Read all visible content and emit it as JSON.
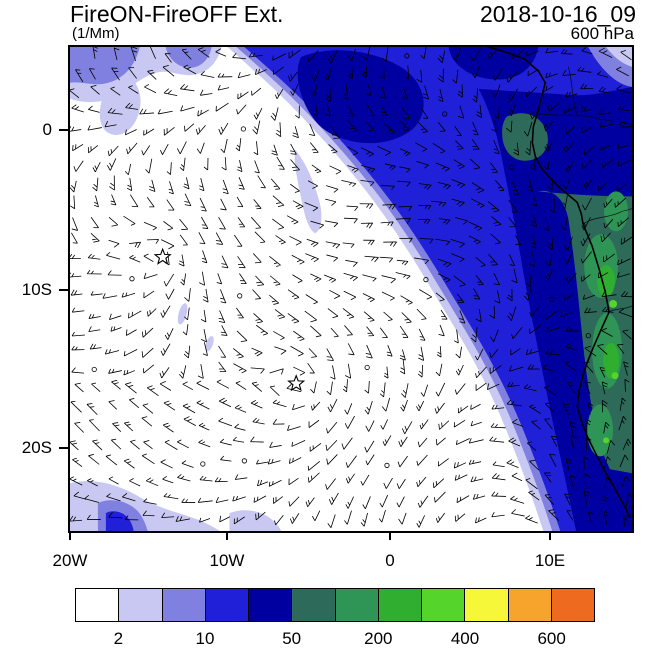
{
  "header": {
    "title": "FireON-FireOFF Ext.",
    "units": "(1/Mm)",
    "datetime": "2018-10-16_09",
    "level": "600 hPa"
  },
  "chart_data": {
    "type": "heatmap",
    "title": "FireON-FireOFF Ext.",
    "units": "1/Mm",
    "pressure_level": "600 hPa",
    "valid_time": "2018-10-16_09",
    "x_axis": {
      "name": "longitude",
      "tick_labels": [
        "20W",
        "10W",
        "0",
        "10E"
      ],
      "range_deg": [
        -20,
        15
      ]
    },
    "y_axis": {
      "name": "latitude",
      "tick_labels": [
        "0",
        "10S",
        "20S"
      ],
      "range_deg": [
        5,
        -25
      ]
    },
    "colorbar": {
      "levels": [
        2,
        5,
        10,
        20,
        50,
        100,
        200,
        300,
        400,
        500,
        600
      ],
      "tick_labels": [
        "2",
        "10",
        "50",
        "200",
        "400",
        "600"
      ],
      "colors": [
        "#ffffff",
        "#c8c8f2",
        "#8080e0",
        "#2020d8",
        "#0000a0",
        "#2d6a5a",
        "#2e9556",
        "#2fae30",
        "#55d42c",
        "#f7f73a",
        "#f7a42c",
        "#ee6a1e"
      ]
    },
    "overlays": {
      "wind_barbs": true,
      "coastline": "west African coast",
      "markers": [
        {
          "type": "star",
          "lon_deg": -14.2,
          "lat_deg": -8.0
        },
        {
          "type": "star",
          "lon_deg": -5.8,
          "lat_deg": -16.0
        }
      ]
    },
    "features": [
      "Broad plume of enhanced extinction (10-50 1/Mm) covering the Gulf of Guinea and southeast Atlantic",
      "Strong enhancement core (50-200 1/Mm) along and inland of the Angola coast",
      "Maximum values (200-400 1/Mm) in narrow patches near the coastline around 10S-17S",
      "Weak band (2-10 1/Mm) along the northwest edge and scattered patches in the southwest corner",
      "Near-zero difference over the central and southwestern South Atlantic"
    ]
  }
}
